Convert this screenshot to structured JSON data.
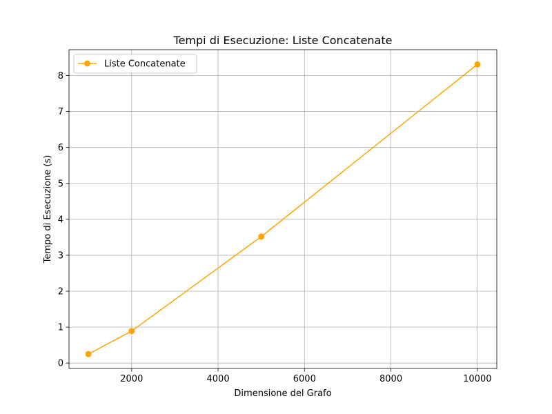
{
  "chart_data": {
    "type": "line",
    "title": "Tempi di Esecuzione: Liste Concatenate",
    "xlabel": "Dimensione del Grafo",
    "ylabel": "Tempo di Esecuzione (s)",
    "xlim": [
      550,
      10450
    ],
    "ylim": [
      -0.15,
      8.72
    ],
    "xticks": [
      2000,
      4000,
      6000,
      8000,
      10000
    ],
    "yticks": [
      0,
      1,
      2,
      3,
      4,
      5,
      6,
      7,
      8
    ],
    "grid": true,
    "legend_position": "top-left",
    "series": [
      {
        "name": "Liste Concatenate",
        "color": "#ffa500",
        "marker": "circle",
        "x": [
          1000,
          2000,
          5000,
          10000
        ],
        "y": [
          0.25,
          0.89,
          3.52,
          8.31
        ]
      }
    ]
  }
}
